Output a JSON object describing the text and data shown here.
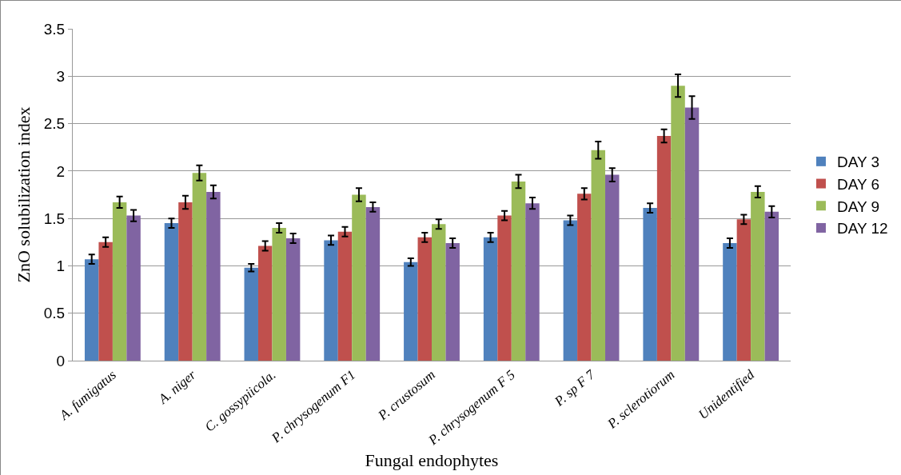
{
  "chart_data": {
    "type": "bar",
    "xlabel": "Fungal endophytes",
    "ylabel": "ZnO solubilization index",
    "categories": [
      "A. fumigatus",
      "A. niger",
      "C. gossypiicola.",
      "P. chrysogenum F1",
      "P. crustosum",
      "P. chrysogenum F 5",
      "P. sp F 7",
      "P. sclerotiorum",
      "Unidentified"
    ],
    "series": [
      {
        "name": "DAY 3",
        "color": "#4f81bd",
        "values": [
          1.07,
          1.45,
          0.98,
          1.27,
          1.04,
          1.3,
          1.48,
          1.61,
          1.24
        ],
        "errors": [
          0.05,
          0.05,
          0.04,
          0.05,
          0.04,
          0.05,
          0.05,
          0.05,
          0.05
        ]
      },
      {
        "name": "DAY 6",
        "color": "#c0504d",
        "values": [
          1.25,
          1.67,
          1.21,
          1.36,
          1.3,
          1.53,
          1.76,
          2.37,
          1.49
        ],
        "errors": [
          0.05,
          0.07,
          0.05,
          0.05,
          0.05,
          0.05,
          0.06,
          0.07,
          0.05
        ]
      },
      {
        "name": "DAY 9",
        "color": "#9bbb59",
        "values": [
          1.67,
          1.98,
          1.4,
          1.75,
          1.44,
          1.89,
          2.22,
          2.9,
          1.78
        ],
        "errors": [
          0.06,
          0.08,
          0.05,
          0.07,
          0.05,
          0.07,
          0.09,
          0.12,
          0.06
        ]
      },
      {
        "name": "DAY 12",
        "color": "#8064a2",
        "values": [
          1.53,
          1.78,
          1.29,
          1.62,
          1.24,
          1.66,
          1.96,
          2.67,
          1.57
        ],
        "errors": [
          0.06,
          0.07,
          0.05,
          0.05,
          0.05,
          0.06,
          0.07,
          0.12,
          0.06
        ]
      }
    ],
    "ylim": [
      0,
      3.5
    ],
    "yticks": [
      0,
      0.5,
      1,
      1.5,
      2,
      2.5,
      3,
      3.5
    ],
    "grid": "y",
    "legend": "right"
  }
}
